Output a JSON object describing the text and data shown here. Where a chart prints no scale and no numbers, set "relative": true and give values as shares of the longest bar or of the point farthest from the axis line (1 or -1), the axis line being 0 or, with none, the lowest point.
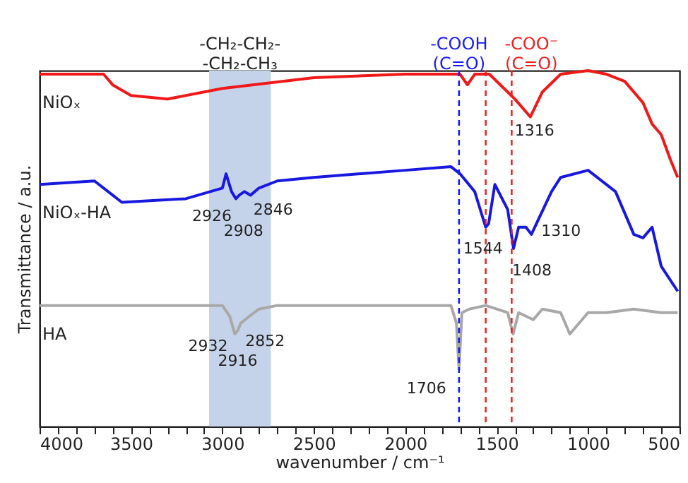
{
  "chart_data": {
    "type": "line",
    "relative": true,
    "xlabel": "wavenumber / cm⁻¹",
    "ylabel": "Transmittance / a.u.",
    "xlim": [
      4000,
      500
    ],
    "xticks": [
      4000,
      {
        "value": 3900,
        "label": null
      },
      {
        "value": 3800,
        "label": null
      },
      {
        "value": 3700,
        "label": null
      },
      {
        "value": 3600,
        "label": null
      },
      3500,
      {
        "value": 3400,
        "label": null
      },
      {
        "value": 3300,
        "label": null
      },
      {
        "value": 3200,
        "label": null
      },
      {
        "value": 3100,
        "label": null
      },
      3000,
      {
        "value": 2900,
        "label": null
      },
      {
        "value": 2800,
        "label": null
      },
      {
        "value": 2700,
        "label": null
      },
      {
        "value": 2600,
        "label": null
      },
      2500,
      {
        "value": 2400,
        "label": null
      },
      {
        "value": 2300,
        "label": null
      },
      {
        "value": 2200,
        "label": null
      },
      {
        "value": 2100,
        "label": null
      },
      2000,
      {
        "value": 1900,
        "label": null
      },
      {
        "value": 1800,
        "label": null
      },
      {
        "value": 1700,
        "label": null
      },
      {
        "value": 1600,
        "label": null
      },
      1500,
      {
        "value": 1400,
        "label": null
      },
      {
        "value": 1300,
        "label": null
      },
      {
        "value": 1200,
        "label": null
      },
      {
        "value": 1100,
        "label": null
      },
      1000,
      {
        "value": 900,
        "label": null
      },
      {
        "value": 800,
        "label": null
      },
      {
        "value": 700,
        "label": null
      },
      {
        "value": 600,
        "label": null
      },
      500
    ],
    "grid": false,
    "line_style": "solid",
    "marker": "none",
    "series": [
      {
        "name": "NiOₓ",
        "color": "#f01818",
        "x": [
          4000,
          3700,
          3650,
          3600,
          3500,
          3300,
          3000,
          2500,
          2000,
          1750,
          1700,
          1660,
          1620,
          1540,
          1460,
          1400,
          1316,
          1250,
          1150,
          1000,
          900,
          800,
          700,
          650,
          600,
          550,
          510
        ],
        "values": [
          0.99,
          0.99,
          0.99,
          0.96,
          0.93,
          0.92,
          0.95,
          0.98,
          0.99,
          0.99,
          0.99,
          0.96,
          0.99,
          0.99,
          0.95,
          0.92,
          0.87,
          0.94,
          0.99,
          1,
          0.99,
          0.97,
          0.91,
          0.85,
          0.82,
          0.75,
          0.7
        ]
      },
      {
        "name": "NiOₓ-HA",
        "color": "#1818e0",
        "x": [
          4000,
          3700,
          3600,
          3550,
          3200,
          3000,
          2980,
          2950,
          2926,
          2908,
          2880,
          2846,
          2800,
          2700,
          2500,
          2000,
          1750,
          1700,
          1620,
          1560,
          1544,
          1510,
          1440,
          1408,
          1380,
          1340,
          1310,
          1200,
          1150,
          1000,
          850,
          750,
          700,
          650,
          600,
          510
        ],
        "values": [
          0.68,
          0.69,
          0.65,
          0.63,
          0.64,
          0.67,
          0.71,
          0.66,
          0.64,
          0.65,
          0.66,
          0.65,
          0.67,
          0.69,
          0.7,
          0.72,
          0.73,
          0.71,
          0.66,
          0.56,
          0.57,
          0.68,
          0.61,
          0.5,
          0.56,
          0.56,
          0.54,
          0.66,
          0.7,
          0.72,
          0.66,
          0.54,
          0.53,
          0.56,
          0.45,
          0.38
        ]
      },
      {
        "name": "HA",
        "color": "#a8a8a8",
        "x": [
          4000,
          3000,
          2960,
          2932,
          2916,
          2900,
          2852,
          2800,
          2700,
          1750,
          1720,
          1706,
          1690,
          1650,
          1560,
          1440,
          1410,
          1380,
          1300,
          1250,
          1150,
          1100,
          1000,
          900,
          750,
          600,
          510
        ],
        "values": [
          0.34,
          0.34,
          0.31,
          0.26,
          0.27,
          0.29,
          0.31,
          0.33,
          0.34,
          0.34,
          0.29,
          0.16,
          0.32,
          0.33,
          0.34,
          0.32,
          0.26,
          0.32,
          0.3,
          0.33,
          0.32,
          0.26,
          0.32,
          0.32,
          0.33,
          0.32,
          0.32
        ]
      }
    ],
    "bands": [
      {
        "axis": "x",
        "from": 3073,
        "to": 2735,
        "label": "-CH₂-CH₂-\n-CH₂-CH₃",
        "color": "#c5d3ea"
      }
    ],
    "ref_lines": [
      {
        "axis": "x",
        "value": 1706,
        "label": "-COOH\n(C=O)",
        "color": "#1a1aff",
        "line_style": "dashed"
      },
      {
        "axis": "x",
        "value": 1560,
        "label": null,
        "color": "#ee2222",
        "line_style": "dashed"
      },
      {
        "axis": "x",
        "value": 1418,
        "label": "-COO⁻\n(C=O)",
        "color": "#ee2222",
        "line_style": "dashed"
      }
    ],
    "annotations": [
      {
        "text": "1316",
        "x": 1316,
        "y": 0.87
      },
      {
        "text": "2926",
        "x": 2926,
        "y": 0.64
      },
      {
        "text": "2908",
        "x": 2908,
        "y": 0.65
      },
      {
        "text": "2846",
        "x": 2846,
        "y": 0.65
      },
      {
        "text": "1544",
        "x": 1544,
        "y": 0.57
      },
      {
        "text": "1408",
        "x": 1408,
        "y": 0.5
      },
      {
        "text": "1310",
        "x": 1310,
        "y": 0.54
      },
      {
        "text": "2932",
        "x": 2932,
        "y": 0.26
      },
      {
        "text": "2916",
        "x": 2916,
        "y": 0.27
      },
      {
        "text": "2852",
        "x": 2852,
        "y": 0.31
      },
      {
        "text": "1706",
        "x": 1706,
        "y": 0.16
      }
    ]
  }
}
